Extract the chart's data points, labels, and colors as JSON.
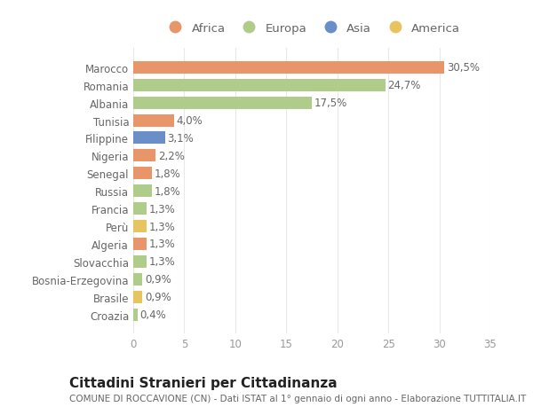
{
  "categories": [
    "Croazia",
    "Brasile",
    "Bosnia-Erzegovina",
    "Slovacchia",
    "Algeria",
    "Perù",
    "Francia",
    "Russia",
    "Senegal",
    "Nigeria",
    "Filippine",
    "Tunisia",
    "Albania",
    "Romania",
    "Marocco"
  ],
  "values": [
    0.4,
    0.9,
    0.9,
    1.3,
    1.3,
    1.3,
    1.3,
    1.8,
    1.8,
    2.2,
    3.1,
    4.0,
    17.5,
    24.7,
    30.5
  ],
  "labels": [
    "0,4%",
    "0,9%",
    "0,9%",
    "1,3%",
    "1,3%",
    "1,3%",
    "1,3%",
    "1,8%",
    "1,8%",
    "2,2%",
    "3,1%",
    "4,0%",
    "17,5%",
    "24,7%",
    "30,5%"
  ],
  "colors": [
    "#b0cc8a",
    "#e8c460",
    "#b0cc8a",
    "#b0cc8a",
    "#e8956a",
    "#e8c460",
    "#b0cc8a",
    "#b0cc8a",
    "#e8956a",
    "#e8956a",
    "#6a8ec8",
    "#e8956a",
    "#b0cc8a",
    "#b0cc8a",
    "#e8956a"
  ],
  "continent_colors": {
    "Africa": "#e8956a",
    "Europa": "#b0cc8a",
    "Asia": "#6a8ec8",
    "America": "#e8c460"
  },
  "legend_labels": [
    "Africa",
    "Europa",
    "Asia",
    "America"
  ],
  "title": "Cittadini Stranieri per Cittadinanza",
  "subtitle": "COMUNE DI ROCCAVIONE (CN) - Dati ISTAT al 1° gennaio di ogni anno - Elaborazione TUTTITALIA.IT",
  "xlim": [
    0,
    35
  ],
  "xticks": [
    0,
    5,
    10,
    15,
    20,
    25,
    30,
    35
  ],
  "bg_color": "#ffffff",
  "grid_color": "#e8e8e8",
  "bar_height": 0.7,
  "label_fontsize": 8.5,
  "tick_fontsize": 8.5,
  "title_fontsize": 11,
  "subtitle_fontsize": 7.5
}
